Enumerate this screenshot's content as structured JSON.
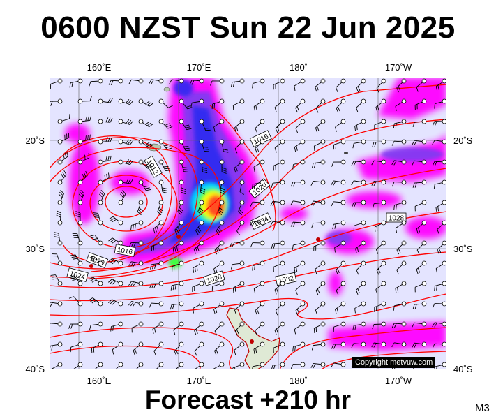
{
  "title": "0600 NZST Sun 22 Jun 2025",
  "footer": "Forecast +210 hr",
  "model_code": "M3",
  "copyright": "Copyright metvuw.com",
  "axes": {
    "lon_top": [
      "160˚E",
      "170˚E",
      "180˚",
      "170˚W"
    ],
    "lon_bottom": [
      "160˚E",
      "170˚E",
      "180˚",
      "170˚W"
    ],
    "lat_left": [
      "20˚S",
      "30˚S",
      "40˚S"
    ],
    "lat_right": [
      "20˚S",
      "30˚S",
      "40˚S"
    ]
  },
  "isobar_labels": [
    "1016",
    "1012",
    "1020",
    "1024",
    "1016",
    "1020",
    "1024",
    "1028",
    "1032",
    "1028"
  ],
  "colors": {
    "isobar": "#ff0000",
    "ocean": "#e4e4ff",
    "rain_light": "#ff00ff",
    "rain_medium": "#7b3cf0",
    "rain_heavy": "#2a2af0",
    "rain_very_heavy": "#00d0ff",
    "rain_extreme": "#ff5020",
    "land": "#dfe9d5"
  },
  "icons": {
    "wind_barb": "wind-barb-icon",
    "station_circle": "station-circle-icon"
  }
}
